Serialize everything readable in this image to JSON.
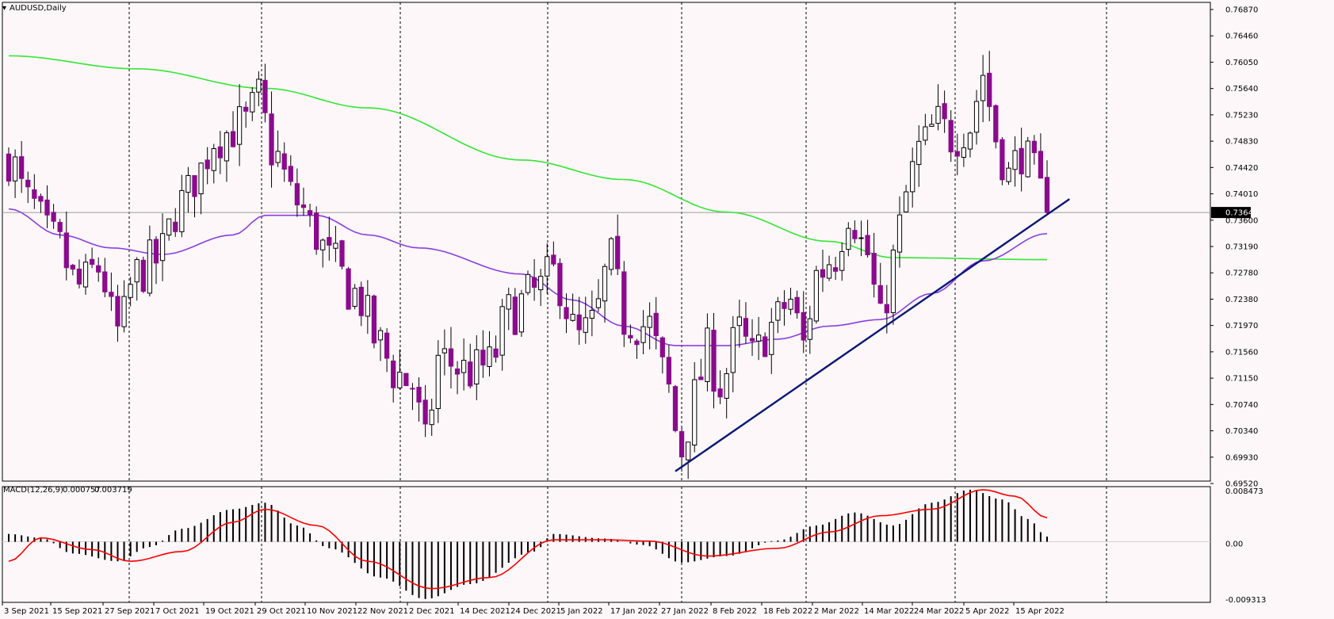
{
  "symbol_label": "AUDUSD,Daily",
  "macd_label": "MACD(12,26,9)",
  "macd_value_main": "0.000757",
  "macd_value_signal": "0.003719",
  "price_box_label": "0.73644",
  "colors": {
    "background": "#fdf7f9",
    "bull_candle": "#000000",
    "bear_candle": "#8b0a8e",
    "ma_long": "#33e633",
    "ma_short": "#8b3ee0",
    "trendline": "#0a1777",
    "macd_signal": "#ff0000",
    "macd_hist": "#000000",
    "grid": "#000000",
    "price_line": "#9c9c9c"
  },
  "chart_data": [
    {
      "type": "candlestick",
      "title": "AUDUSD,Daily",
      "ylim": [
        0.6952,
        0.7687
      ],
      "y_ticks": [
        "0.76870",
        "0.76460",
        "0.76050",
        "0.75640",
        "0.75230",
        "0.74830",
        "0.74420",
        "0.74010",
        "0.73600",
        "0.73190",
        "0.72780",
        "0.72380",
        "0.71970",
        "0.71560",
        "0.71150",
        "0.70740",
        "0.70340",
        "0.69930",
        "0.69520"
      ],
      "x_ticks": [
        "3 Sep 2021",
        "15 Sep 2021",
        "27 Sep 2021",
        "7 Oct 2021",
        "19 Oct 2021",
        "29 Oct 2021",
        "10 Nov 2021",
        "22 Nov 2021",
        "2 Dec 2021",
        "14 Dec 2021",
        "24 Dec 2021",
        "5 Jan 2022",
        "17 Jan 2022",
        "27 Jan 2022",
        "8 Feb 2022",
        "18 Feb 2022",
        "2 Mar 2022",
        "14 Mar 2022",
        "24 Mar 2022",
        "5 Apr 2022",
        "15 Apr 2022"
      ],
      "current_price": 0.73644,
      "anchors": [
        {
          "date": "3 Sep 2021",
          "close": 0.745
        },
        {
          "date": "8 Sep 2021",
          "close": 0.738
        },
        {
          "date": "14 Sep 2021",
          "close": 0.732
        },
        {
          "date": "20 Sep 2021",
          "close": 0.725
        },
        {
          "date": "23 Sep 2021",
          "close": 0.728
        },
        {
          "date": "28 Sep 2021",
          "close": 0.718
        },
        {
          "date": "1 Oct 2021",
          "close": 0.727
        },
        {
          "date": "6 Oct 2021",
          "close": 0.729
        },
        {
          "date": "12 Oct 2021",
          "close": 0.738
        },
        {
          "date": "15 Oct 2021",
          "close": 0.743
        },
        {
          "date": "19 Oct 2021",
          "close": 0.748
        },
        {
          "date": "26 Oct 2021",
          "close": 0.75
        },
        {
          "date": "28 Oct 2021",
          "close": 0.754
        },
        {
          "date": "1 Nov 2021",
          "close": 0.746
        },
        {
          "date": "5 Nov 2021",
          "close": 0.738
        },
        {
          "date": "10 Nov 2021",
          "close": 0.733
        },
        {
          "date": "12 Nov 2021",
          "close": 0.729
        },
        {
          "date": "18 Nov 2021",
          "close": 0.724
        },
        {
          "date": "24 Nov 2021",
          "close": 0.716
        },
        {
          "date": "26 Nov 2021",
          "close": 0.712
        },
        {
          "date": "1 Dec 2021",
          "close": 0.71
        },
        {
          "date": "3 Dec 2021",
          "close": 0.7005
        },
        {
          "date": "7 Dec 2021",
          "close": 0.714
        },
        {
          "date": "14 Dec 2021",
          "close": 0.712
        },
        {
          "date": "17 Dec 2021",
          "close": 0.713
        },
        {
          "date": "22 Dec 2021",
          "close": 0.721
        },
        {
          "date": "28 Dec 2021",
          "close": 0.724
        },
        {
          "date": "31 Dec 2021",
          "close": 0.727
        },
        {
          "date": "6 Jan 2022",
          "close": 0.717
        },
        {
          "date": "10 Jan 2022",
          "close": 0.719
        },
        {
          "date": "13 Jan 2022",
          "close": 0.729
        },
        {
          "date": "17 Jan 2022",
          "close": 0.72
        },
        {
          "date": "21 Jan 2022",
          "close": 0.719
        },
        {
          "date": "25 Jan 2022",
          "close": 0.712
        },
        {
          "date": "28 Jan 2022",
          "close": 0.7
        },
        {
          "date": "1 Feb 2022",
          "close": 0.708
        },
        {
          "date": "3 Feb 2022",
          "close": 0.715
        },
        {
          "date": "7 Feb 2022",
          "close": 0.71
        },
        {
          "date": "10 Feb 2022",
          "close": 0.718
        },
        {
          "date": "14 Feb 2022",
          "close": 0.714
        },
        {
          "date": "17 Feb 2022",
          "close": 0.719
        },
        {
          "date": "22 Feb 2022",
          "close": 0.723
        },
        {
          "date": "24 Feb 2022",
          "close": 0.716
        },
        {
          "date": "28 Feb 2022",
          "close": 0.727
        },
        {
          "date": "3 Mar 2022",
          "close": 0.73
        },
        {
          "date": "7 Mar 2022",
          "close": 0.737
        },
        {
          "date": "10 Mar 2022",
          "close": 0.73
        },
        {
          "date": "14 Mar 2022",
          "close": 0.719
        },
        {
          "date": "16 Mar 2022",
          "close": 0.729
        },
        {
          "date": "18 Mar 2022",
          "close": 0.739
        },
        {
          "date": "22 Mar 2022",
          "close": 0.746
        },
        {
          "date": "25 Mar 2022",
          "close": 0.75
        },
        {
          "date": "29 Mar 2022",
          "close": 0.748
        },
        {
          "date": "1 Apr 2022",
          "close": 0.75
        },
        {
          "date": "5 Apr 2022",
          "close": 0.758
        },
        {
          "date": "7 Apr 2022",
          "close": 0.748
        },
        {
          "date": "11 Apr 2022",
          "close": 0.742
        },
        {
          "date": "13 Apr 2022",
          "close": 0.746
        },
        {
          "date": "15 Apr 2022",
          "close": 0.742
        },
        {
          "date": "19 Apr 2022",
          "close": 0.7364
        }
      ],
      "ma_long_points": [
        {
          "date": "3 Sep 2021",
          "value": 0.7605
        },
        {
          "date": "1 Oct 2021",
          "value": 0.7585
        },
        {
          "date": "29 Oct 2021",
          "value": 0.7555
        },
        {
          "date": "22 Nov 2021",
          "value": 0.7525
        },
        {
          "date": "24 Dec 2021",
          "value": 0.7445
        },
        {
          "date": "17 Jan 2022",
          "value": 0.7415
        },
        {
          "date": "8 Feb 2022",
          "value": 0.7365
        },
        {
          "date": "2 Mar 2022",
          "value": 0.732
        },
        {
          "date": "16 Mar 2022",
          "value": 0.7295
        },
        {
          "date": "19 Apr 2022",
          "value": 0.7292
        }
      ],
      "ma_short_points": [
        {
          "date": "3 Sep 2021",
          "value": 0.737
        },
        {
          "date": "15 Sep 2021",
          "value": 0.733
        },
        {
          "date": "27 Sep 2021",
          "value": 0.731
        },
        {
          "date": "7 Oct 2021",
          "value": 0.73
        },
        {
          "date": "22 Oct 2021",
          "value": 0.733
        },
        {
          "date": "29 Oct 2021",
          "value": 0.736
        },
        {
          "date": "10 Nov 2021",
          "value": 0.736
        },
        {
          "date": "22 Nov 2021",
          "value": 0.733
        },
        {
          "date": "2 Dec 2021",
          "value": 0.731
        },
        {
          "date": "24 Dec 2021",
          "value": 0.727
        },
        {
          "date": "5 Jan 2022",
          "value": 0.723
        },
        {
          "date": "17 Jan 2022",
          "value": 0.719
        },
        {
          "date": "27 Jan 2022",
          "value": 0.716
        },
        {
          "date": "8 Feb 2022",
          "value": 0.716
        },
        {
          "date": "18 Feb 2022",
          "value": 0.717
        },
        {
          "date": "2 Mar 2022",
          "value": 0.719
        },
        {
          "date": "14 Mar 2022",
          "value": 0.72
        },
        {
          "date": "24 Mar 2022",
          "value": 0.724
        },
        {
          "date": "5 Apr 2022",
          "value": 0.729
        },
        {
          "date": "19 Apr 2022",
          "value": 0.7332
        }
      ],
      "trendline": [
        {
          "date": "27 Jan 2022",
          "value": 0.6967
        },
        {
          "date": "24 Apr 2022",
          "value": 0.7385
        }
      ]
    },
    {
      "type": "macd",
      "title": "MACD(12,26,9)",
      "ylim": [
        -0.009313,
        0.008473
      ],
      "y_ticks": [
        "0.008473",
        "0.00",
        "-0.009313"
      ],
      "histogram_anchors": [
        {
          "date": "3 Sep 2021",
          "value": 0.0012
        },
        {
          "date": "12 Sep 2021",
          "value": 0.0006
        },
        {
          "date": "18 Sep 2021",
          "value": -0.0018
        },
        {
          "date": "28 Sep 2021",
          "value": -0.003
        },
        {
          "date": "5 Oct 2021",
          "value": -0.0008
        },
        {
          "date": "12 Oct 2021",
          "value": 0.002
        },
        {
          "date": "22 Oct 2021",
          "value": 0.005
        },
        {
          "date": "30 Oct 2021",
          "value": 0.006
        },
        {
          "date": "5 Nov 2021",
          "value": 0.0025
        },
        {
          "date": "12 Nov 2021",
          "value": -0.001
        },
        {
          "date": "24 Nov 2021",
          "value": -0.0055
        },
        {
          "date": "4 Dec 2021",
          "value": -0.0088
        },
        {
          "date": "14 Dec 2021",
          "value": -0.0065
        },
        {
          "date": "28 Dec 2021",
          "value": -0.0015
        },
        {
          "date": "2 Jan 2022",
          "value": 0.0012
        },
        {
          "date": "12 Jan 2022",
          "value": 0.0005
        },
        {
          "date": "20 Jan 2022",
          "value": -0.0005
        },
        {
          "date": "28 Jan 2022",
          "value": -0.0032
        },
        {
          "date": "8 Feb 2022",
          "value": -0.0022
        },
        {
          "date": "18 Feb 2022",
          "value": 0.0002
        },
        {
          "date": "28 Feb 2022",
          "value": 0.0025
        },
        {
          "date": "8 Mar 2022",
          "value": 0.0045
        },
        {
          "date": "16 Mar 2022",
          "value": 0.0025
        },
        {
          "date": "24 Mar 2022",
          "value": 0.006
        },
        {
          "date": "2 Apr 2022",
          "value": 0.008
        },
        {
          "date": "8 Apr 2022",
          "value": 0.0065
        },
        {
          "date": "14 Apr 2022",
          "value": 0.0035
        },
        {
          "date": "19 Apr 2022",
          "value": 0.0008
        }
      ],
      "signal_anchors": [
        {
          "date": "3 Sep 2021",
          "value": -0.003
        },
        {
          "date": "12 Sep 2021",
          "value": 0.0006
        },
        {
          "date": "22 Sep 2021",
          "value": -0.0012
        },
        {
          "date": "30 Sep 2021",
          "value": -0.003
        },
        {
          "date": "12 Oct 2021",
          "value": -0.0015
        },
        {
          "date": "22 Oct 2021",
          "value": 0.003
        },
        {
          "date": "31 Oct 2021",
          "value": 0.005
        },
        {
          "date": "10 Nov 2021",
          "value": 0.0025
        },
        {
          "date": "22 Nov 2021",
          "value": -0.003
        },
        {
          "date": "6 Dec 2021",
          "value": -0.0072
        },
        {
          "date": "18 Dec 2021",
          "value": -0.0055
        },
        {
          "date": "2 Jan 2022",
          "value": 0.0003
        },
        {
          "date": "12 Jan 2022",
          "value": 0.0003
        },
        {
          "date": "22 Jan 2022",
          "value": 0.0001
        },
        {
          "date": "3 Feb 2022",
          "value": -0.0022
        },
        {
          "date": "18 Feb 2022",
          "value": -0.001
        },
        {
          "date": "2 Mar 2022",
          "value": 0.0015
        },
        {
          "date": "14 Mar 2022",
          "value": 0.004
        },
        {
          "date": "24 Mar 2022",
          "value": 0.005
        },
        {
          "date": "5 Apr 2022",
          "value": 0.008
        },
        {
          "date": "12 Apr 2022",
          "value": 0.007
        },
        {
          "date": "19 Apr 2022",
          "value": 0.0037
        }
      ]
    }
  ]
}
